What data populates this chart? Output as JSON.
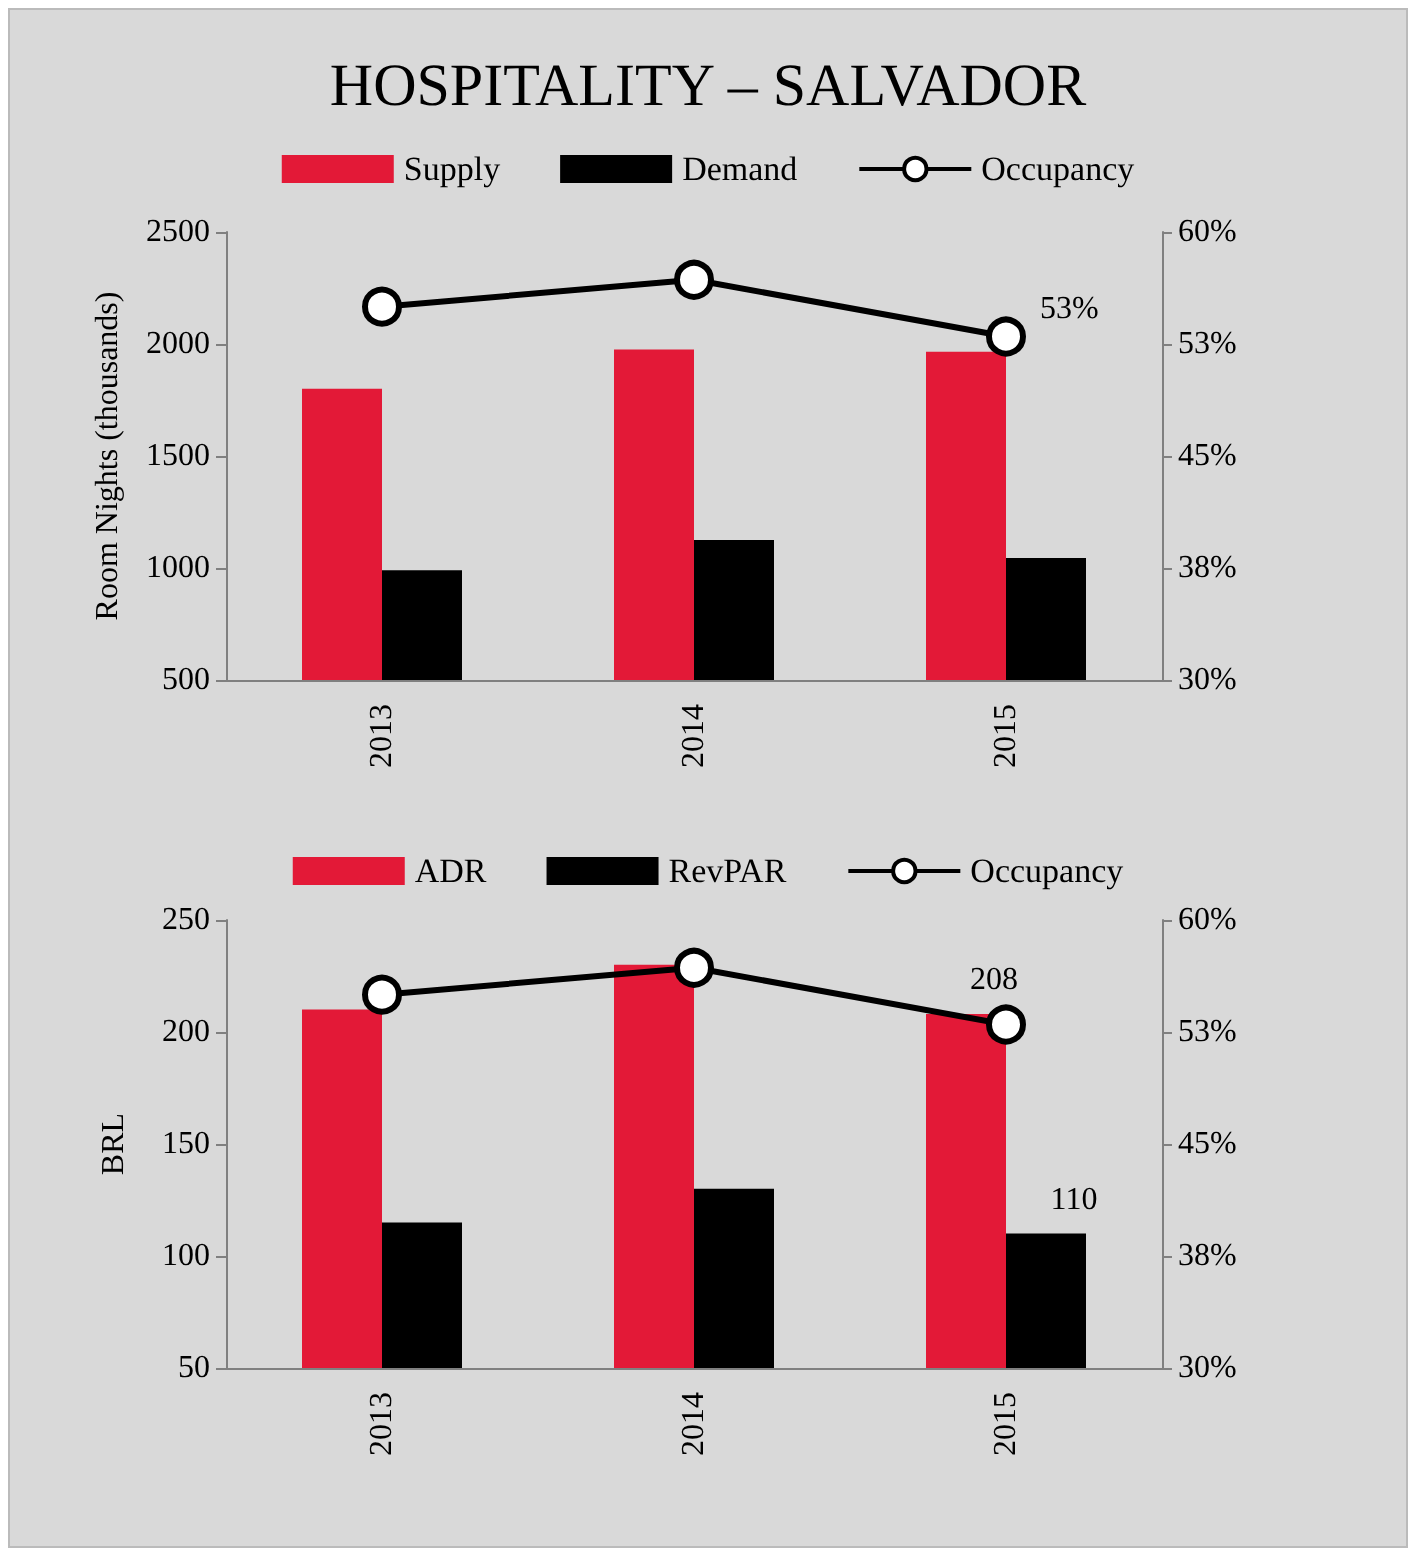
{
  "chart_data": [
    {
      "type": "bar",
      "title": "HOSPITALITY – SALVADOR",
      "ylabel": "Room Nights (thousands)",
      "categories": [
        "2013",
        "2014",
        "2015"
      ],
      "series": [
        {
          "name": "Supply",
          "color": "#e31937",
          "values": [
            1800,
            1975,
            1965
          ]
        },
        {
          "name": "Demand",
          "color": "#000000",
          "values": [
            990,
            1125,
            1045
          ]
        },
        {
          "name": "Occupancy",
          "type": "line",
          "axis": "y2",
          "color": "#000000",
          "values": [
            55,
            56.8,
            53
          ],
          "value_labels": [
            null,
            null,
            "53%"
          ]
        }
      ],
      "ylim": [
        500,
        2500
      ],
      "yticks": [
        500,
        1000,
        1500,
        2000,
        2500
      ],
      "y2lim": [
        30,
        60
      ],
      "y2ticks": [
        {
          "value": 30,
          "label": "30%"
        },
        {
          "value": 37.5,
          "label": "38%"
        },
        {
          "value": 45,
          "label": "45%"
        },
        {
          "value": 52.5,
          "label": "53%"
        },
        {
          "value": 60,
          "label": "60%"
        }
      ],
      "legend": "top",
      "marker": "circle"
    },
    {
      "type": "bar",
      "ylabel": "BRL",
      "categories": [
        "2013",
        "2014",
        "2015"
      ],
      "series": [
        {
          "name": "ADR",
          "color": "#e31937",
          "values": [
            210,
            230,
            208
          ],
          "value_labels": [
            null,
            null,
            "208"
          ]
        },
        {
          "name": "RevPAR",
          "color": "#000000",
          "values": [
            115,
            130,
            110
          ],
          "value_labels": [
            null,
            null,
            "110"
          ]
        },
        {
          "name": "Occupancy",
          "type": "line",
          "axis": "y2",
          "color": "#000000",
          "values": [
            55,
            56.8,
            53
          ]
        }
      ],
      "ylim": [
        50,
        250
      ],
      "yticks": [
        50,
        100,
        150,
        200,
        250
      ],
      "y2lim": [
        30,
        60
      ],
      "y2ticks": [
        {
          "value": 30,
          "label": "30%"
        },
        {
          "value": 37.5,
          "label": "38%"
        },
        {
          "value": 45,
          "label": "45%"
        },
        {
          "value": 52.5,
          "label": "53%"
        },
        {
          "value": 60,
          "label": "60%"
        }
      ],
      "legend": "top",
      "marker": "circle"
    }
  ]
}
